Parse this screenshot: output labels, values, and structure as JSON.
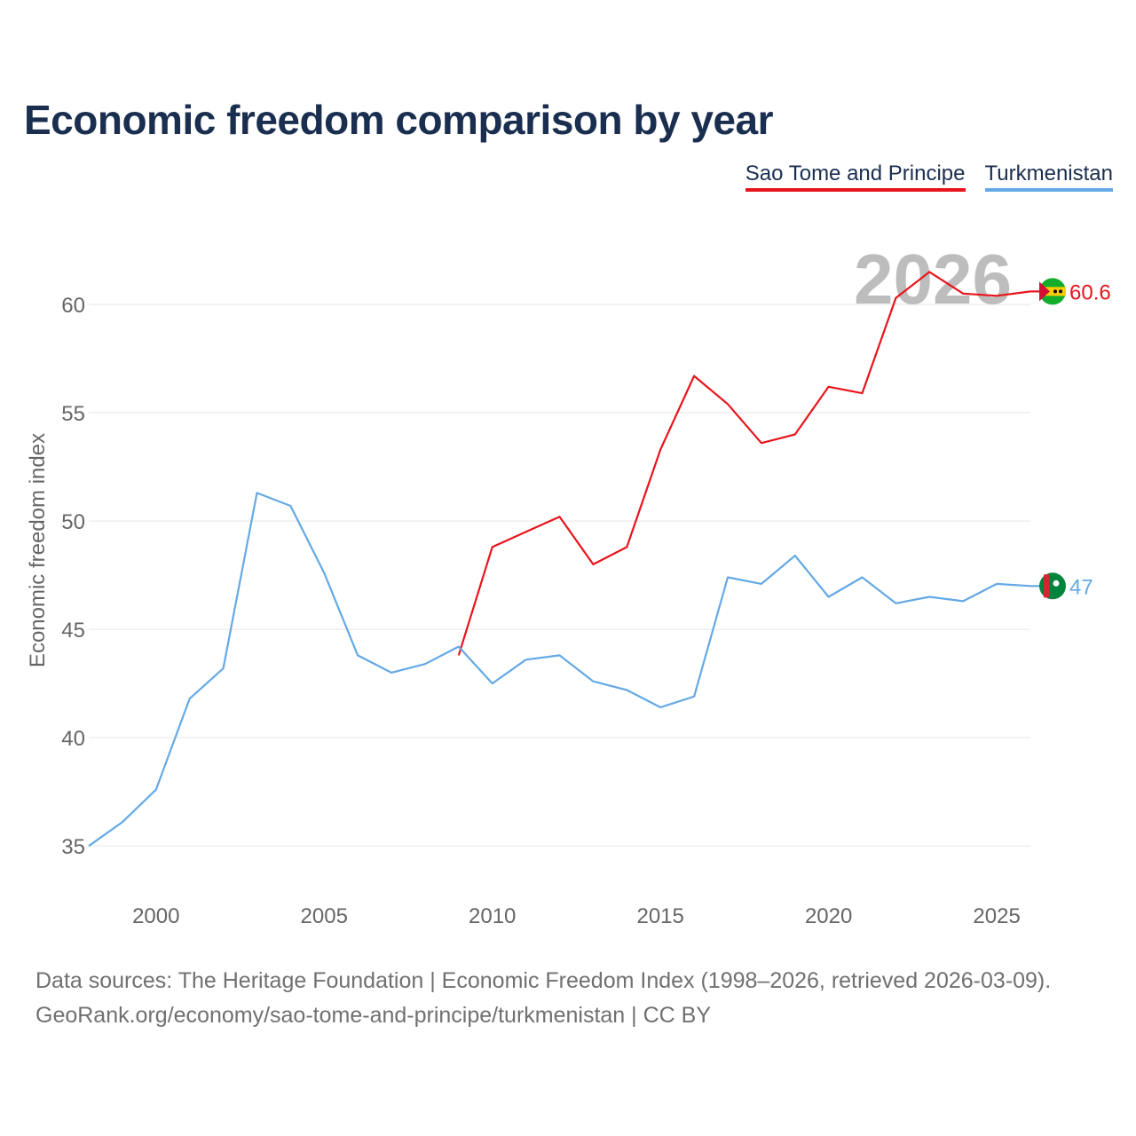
{
  "title": "Economic freedom comparison by year",
  "legend": [
    {
      "name": "Sao Tome and Principe",
      "color": "#e8141c"
    },
    {
      "name": "Turkmenistan",
      "color": "#64a9e6"
    }
  ],
  "chart_data": {
    "type": "line",
    "title": "Economic freedom comparison by year",
    "xlabel": "",
    "ylabel": "Economic freedom index",
    "xlim": [
      1998,
      2026
    ],
    "ylim": [
      33,
      62.5
    ],
    "x_ticks": [
      2000,
      2005,
      2010,
      2015,
      2020,
      2025
    ],
    "y_ticks": [
      35,
      40,
      45,
      50,
      55,
      60
    ],
    "grid": true,
    "current_year_label": "2026",
    "series": [
      {
        "name": "Sao Tome and Principe",
        "color": "#e8141c",
        "end_label": "60.6",
        "points": [
          [
            2009,
            43.8
          ],
          [
            2010,
            48.8
          ],
          [
            2011,
            49.5
          ],
          [
            2012,
            50.2
          ],
          [
            2013,
            48.0
          ],
          [
            2014,
            48.8
          ],
          [
            2015,
            53.3
          ],
          [
            2016,
            56.7
          ],
          [
            2017,
            55.4
          ],
          [
            2018,
            53.6
          ],
          [
            2019,
            54.0
          ],
          [
            2020,
            56.2
          ],
          [
            2021,
            55.9
          ],
          [
            2022,
            60.3
          ],
          [
            2023,
            61.5
          ],
          [
            2024,
            60.5
          ],
          [
            2025,
            60.4
          ],
          [
            2026,
            60.6
          ]
        ]
      },
      {
        "name": "Turkmenistan",
        "color": "#64a9e6",
        "end_label": "47",
        "points": [
          [
            1998,
            35.0
          ],
          [
            1999,
            36.1
          ],
          [
            2000,
            37.6
          ],
          [
            2001,
            41.8
          ],
          [
            2002,
            43.2
          ],
          [
            2003,
            51.3
          ],
          [
            2004,
            50.7
          ],
          [
            2005,
            47.6
          ],
          [
            2006,
            43.8
          ],
          [
            2007,
            43.0
          ],
          [
            2008,
            43.4
          ],
          [
            2009,
            44.2
          ],
          [
            2010,
            42.5
          ],
          [
            2011,
            43.6
          ],
          [
            2012,
            43.8
          ],
          [
            2013,
            42.6
          ],
          [
            2014,
            42.2
          ],
          [
            2015,
            41.4
          ],
          [
            2016,
            41.9
          ],
          [
            2017,
            47.4
          ],
          [
            2018,
            47.1
          ],
          [
            2019,
            48.4
          ],
          [
            2020,
            46.5
          ],
          [
            2021,
            47.4
          ],
          [
            2022,
            46.2
          ],
          [
            2023,
            46.5
          ],
          [
            2024,
            46.3
          ],
          [
            2025,
            47.1
          ],
          [
            2026,
            47.0
          ]
        ]
      }
    ]
  },
  "footer": {
    "source": "Data sources: The Heritage Foundation | Economic Freedom Index (1998–2026, retrieved 2026-03-09).",
    "credit": "GeoRank.org/economy/sao-tome-and-principe/turkmenistan | CC BY"
  }
}
